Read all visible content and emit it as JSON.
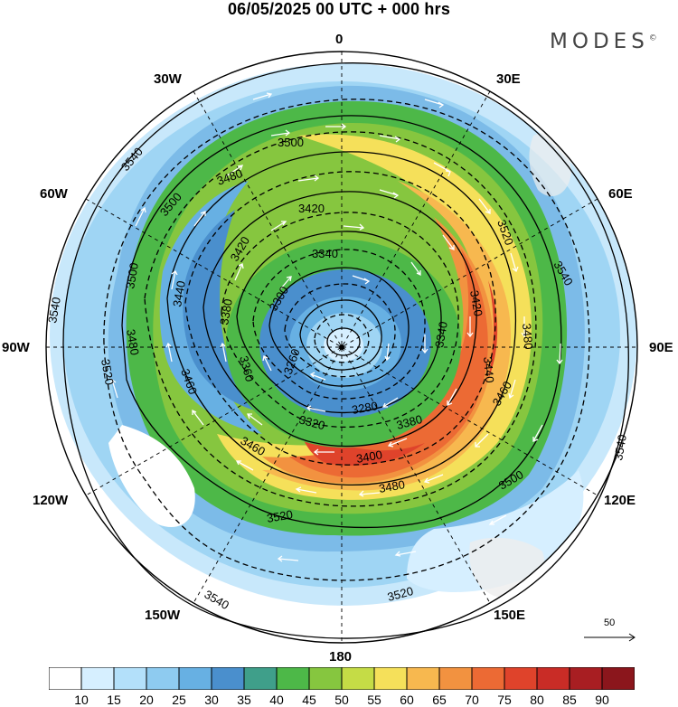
{
  "title": "06/05/2025  00 UTC  + 000 hrs",
  "brand": "MODES",
  "brand_mark": "©",
  "longitude_labels": [
    "0",
    "30E",
    "60E",
    "90E",
    "120E",
    "150E",
    "180",
    "150W",
    "120W",
    "90W",
    "60W",
    "30W"
  ],
  "reference_vector": {
    "value": "50"
  },
  "colorbar": {
    "levels": [
      "10",
      "15",
      "20",
      "25",
      "30",
      "35",
      "40",
      "45",
      "50",
      "55",
      "60",
      "65",
      "70",
      "75",
      "80",
      "85",
      "90"
    ],
    "colors": [
      "#ffffff",
      "#d6efff",
      "#b3e0fa",
      "#8ecbf0",
      "#67b0e3",
      "#4a8fcd",
      "#3f9f8a",
      "#4db848",
      "#86c63f",
      "#c5dc46",
      "#f5e05a",
      "#f7b84f",
      "#f29240",
      "#ec6a34",
      "#df432b",
      "#c92c26",
      "#a81e22",
      "#8b161c"
    ]
  },
  "contour_labels": [
    "3540",
    "3540",
    "3540",
    "3540",
    "3540",
    "3520",
    "3520",
    "3520",
    "3520",
    "3500",
    "3500",
    "3500",
    "3500",
    "3480",
    "3480",
    "3480",
    "3480",
    "3460",
    "3460",
    "3460",
    "3440",
    "3440",
    "3420",
    "3420",
    "3420",
    "3400",
    "3380",
    "3380",
    "3360",
    "3340",
    "3340",
    "3320",
    "3300",
    "3280",
    "3260"
  ]
}
